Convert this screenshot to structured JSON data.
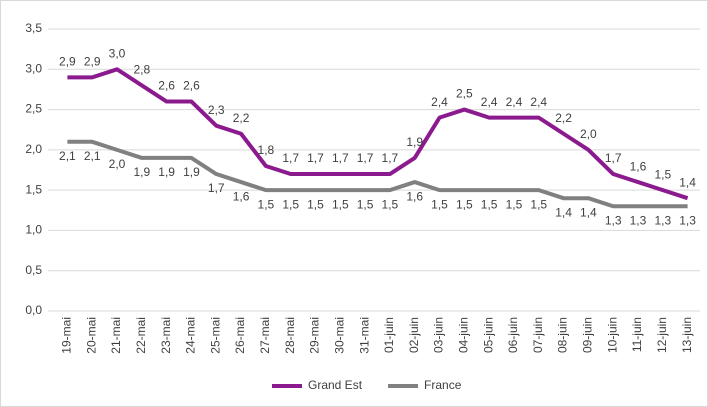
{
  "chart_data": {
    "type": "line",
    "categories": [
      "19-mai",
      "20-mai",
      "21-mai",
      "22-mai",
      "23-mai",
      "24-mai",
      "25-mai",
      "26-mai",
      "27-mai",
      "28-mai",
      "29-mai",
      "30-mai",
      "31-mai",
      "01-juin",
      "02-juin",
      "03-juin",
      "04-juin",
      "05-juin",
      "06-juin",
      "07-juin",
      "08-juin",
      "09-juin",
      "10-juin",
      "11-juin",
      "12-juin",
      "13-juin"
    ],
    "series": [
      {
        "name": "Grand Est",
        "color": "#8b1a8e",
        "values": [
          2.9,
          2.9,
          3.0,
          2.8,
          2.6,
          2.6,
          2.3,
          2.2,
          1.8,
          1.7,
          1.7,
          1.7,
          1.7,
          1.7,
          1.9,
          2.4,
          2.5,
          2.4,
          2.4,
          2.4,
          2.2,
          2.0,
          1.7,
          1.6,
          1.5,
          1.4
        ],
        "value_labels": [
          "2,9",
          "2,9",
          "3,0",
          "2,8",
          "2,6",
          "2,6",
          "2,3",
          "2,2",
          "1,8",
          "1,7",
          "1,7",
          "1,7",
          "1,7",
          "1,7",
          "1,9",
          "2,4",
          "2,5",
          "2,4",
          "2,4",
          "2,4",
          "2,2",
          "2,0",
          "1,7",
          "1,6",
          "1,5",
          "1,4"
        ]
      },
      {
        "name": "France",
        "color": "#808080",
        "values": [
          2.1,
          2.1,
          2.0,
          1.9,
          1.9,
          1.9,
          1.7,
          1.6,
          1.5,
          1.5,
          1.5,
          1.5,
          1.5,
          1.5,
          1.6,
          1.5,
          1.5,
          1.5,
          1.5,
          1.5,
          1.4,
          1.4,
          1.3,
          1.3,
          1.3,
          1.3
        ],
        "value_labels": [
          "2,1",
          "2,1",
          "2,0",
          "1,9",
          "1,9",
          "1,9",
          "1,7",
          "1,6",
          "1,5",
          "1,5",
          "1,5",
          "1,5",
          "1,5",
          "1,5",
          "1,6",
          "1,5",
          "1,5",
          "1,5",
          "1,5",
          "1,5",
          "1,4",
          "1,4",
          "1,3",
          "1,3",
          "1,3",
          "1,3"
        ]
      }
    ],
    "ylim": [
      0,
      3.5
    ],
    "yticks": [
      {
        "value": 0,
        "label": "0,0"
      },
      {
        "value": 0.5,
        "label": "0,5"
      },
      {
        "value": 1,
        "label": "1,0"
      },
      {
        "value": 1.5,
        "label": "1,5"
      },
      {
        "value": 2,
        "label": "2,0"
      },
      {
        "value": 2.5,
        "label": "2,5"
      },
      {
        "value": 3,
        "label": "3,0"
      },
      {
        "value": 3.5,
        "label": "3,5"
      }
    ],
    "grid": true,
    "legend": "bottom"
  }
}
